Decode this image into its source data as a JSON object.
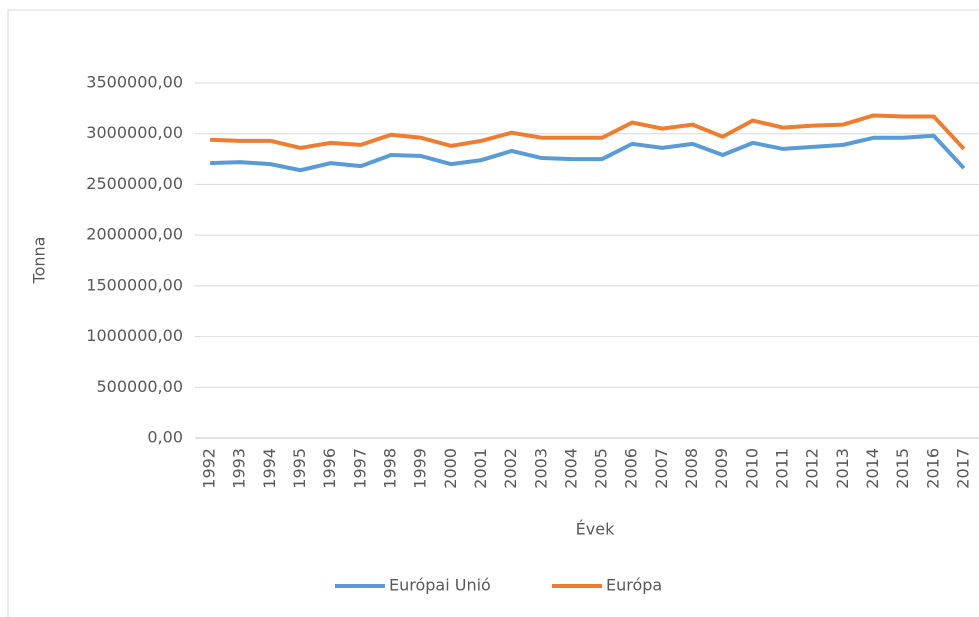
{
  "chart_data": {
    "type": "line",
    "x_label": "Évek",
    "y_label": "Tonna",
    "categories": [
      "1992",
      "1993",
      "1994",
      "1995",
      "1996",
      "1997",
      "1998",
      "1999",
      "2000",
      "2001",
      "2002",
      "2003",
      "2004",
      "2005",
      "2006",
      "2007",
      "2008",
      "2009",
      "2010",
      "2011",
      "2012",
      "2013",
      "2014",
      "2015",
      "2016",
      "2017"
    ],
    "series": [
      {
        "name": "Európai Unió",
        "color": "#5b9bd5",
        "values": [
          2710000,
          2720000,
          2700000,
          2640000,
          2710000,
          2680000,
          2790000,
          2780000,
          2700000,
          2740000,
          2830000,
          2760000,
          2750000,
          2750000,
          2900000,
          2860000,
          2900000,
          2790000,
          2910000,
          2850000,
          2870000,
          2890000,
          2960000,
          2960000,
          2980000,
          2660000
        ]
      },
      {
        "name": "Európa",
        "color": "#ed7d31",
        "values": [
          2940000,
          2930000,
          2930000,
          2860000,
          2910000,
          2890000,
          2990000,
          2960000,
          2880000,
          2930000,
          3010000,
          2960000,
          2960000,
          2960000,
          3110000,
          3050000,
          3090000,
          2970000,
          3130000,
          3060000,
          3080000,
          3090000,
          3180000,
          3170000,
          3170000,
          2850000
        ]
      }
    ],
    "ylim": [
      0,
      3500000
    ],
    "yticks": [
      {
        "value": 0,
        "label": "0,00"
      },
      {
        "value": 500000,
        "label": "500000,00"
      },
      {
        "value": 1000000,
        "label": "1000000,00"
      },
      {
        "value": 1500000,
        "label": "1500000,00"
      },
      {
        "value": 2000000,
        "label": "2000000,00"
      },
      {
        "value": 2500000,
        "label": "2500000,00"
      },
      {
        "value": 3000000,
        "label": "3000000,00"
      },
      {
        "value": 3500000,
        "label": "3500000,00"
      }
    ],
    "grid": true,
    "legend": "bottom"
  }
}
